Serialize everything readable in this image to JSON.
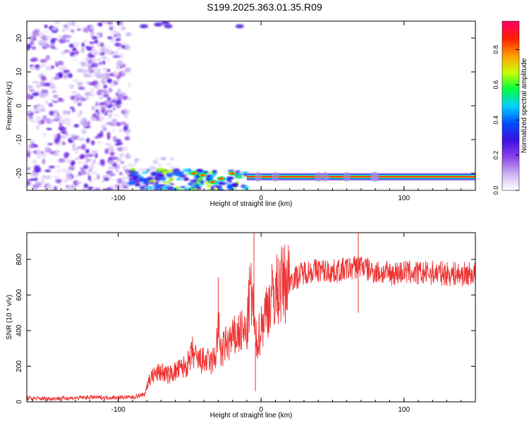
{
  "title": "S199.2025.363.01.35.R09",
  "chart_data": [
    {
      "type": "heatmap",
      "xlabel": "Height of straight line (km)",
      "ylabel": "Frequency (Hz)",
      "xlim": [
        -164,
        150
      ],
      "ylim": [
        -25,
        25
      ],
      "x_ticks": [
        -100,
        0,
        100
      ],
      "y_ticks": [
        -20,
        -10,
        0,
        10,
        20
      ],
      "colorbar": {
        "label": "Normalized spectral amplitude",
        "range": [
          0,
          1
        ],
        "ticks": [
          "0.0",
          "0.2",
          "0.4",
          "0.6",
          "0.8"
        ],
        "colors": [
          "#ffffff",
          "#c9b0f0",
          "#8a40e8",
          "#3a10e0",
          "#0050ff",
          "#00d0ff",
          "#00ff40",
          "#c8ff00",
          "#ffa000",
          "#ff2000",
          "#ff0060"
        ]
      },
      "features": {
        "noise_region_x": [
          -164,
          -92
        ],
        "dominant_frequency_hz": -21,
        "dominant_band_x": [
          -10,
          150
        ],
        "onset_x": -92
      }
    },
    {
      "type": "line",
      "xlabel": "Height of straight line (km)",
      "ylabel": "SNR (10 * v/v)",
      "xlim": [
        -164,
        150
      ],
      "ylim": [
        0,
        950
      ],
      "x_ticks": [
        -100,
        0,
        100
      ],
      "y_ticks": [
        0,
        200,
        400,
        600,
        800
      ],
      "series": [
        {
          "color": "#ee3333",
          "x": [
            -164,
            -150,
            -140,
            -130,
            -120,
            -110,
            -100,
            -90,
            -82,
            -78,
            -75,
            -70,
            -65,
            -60,
            -55,
            -50,
            -48,
            -45,
            -40,
            -35,
            -32,
            -30,
            -28,
            -25,
            -20,
            -15,
            -10,
            -8,
            -6,
            -4,
            -2,
            0,
            5,
            10,
            15,
            20,
            25,
            30,
            40,
            50,
            60,
            68,
            70,
            75,
            80,
            90,
            100,
            110,
            120,
            130,
            140,
            150
          ],
          "values": [
            20,
            18,
            20,
            22,
            25,
            24,
            25,
            26,
            40,
            130,
            150,
            170,
            150,
            170,
            190,
            220,
            280,
            230,
            230,
            220,
            250,
            420,
            270,
            320,
            350,
            390,
            380,
            600,
            580,
            330,
            360,
            420,
            550,
            620,
            660,
            690,
            700,
            730,
            740,
            730,
            745,
            760,
            770,
            740,
            730,
            720,
            730,
            720,
            725,
            720,
            715,
            720
          ]
        }
      ]
    }
  ]
}
